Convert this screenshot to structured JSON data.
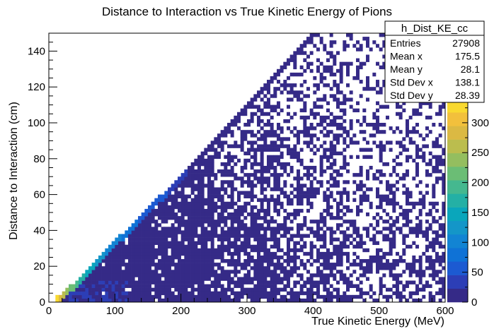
{
  "chart_data": {
    "type": "heatmap",
    "title": "Distance to Interaction vs True Kinetic Energy of Pions",
    "xlabel": "True Kinetic Energy (MeV)",
    "ylabel": "Distance to Interaction (cm)",
    "xlim": [
      0,
      600
    ],
    "ylim": [
      0,
      150
    ],
    "x_ticks": [
      0,
      100,
      200,
      300,
      400,
      500,
      600
    ],
    "y_ticks": [
      0,
      20,
      40,
      60,
      80,
      100,
      120,
      140
    ],
    "z_range": [
      0,
      340
    ],
    "z_ticks": [
      0,
      50,
      100,
      150,
      200,
      250,
      300
    ],
    "palette": [
      "#352a87",
      "#2c3eb6",
      "#1c5ad2",
      "#0f72d6",
      "#1284d3",
      "#1496c8",
      "#0aa6bb",
      "#24b0a5",
      "#45b88f",
      "#6bbd75",
      "#94be5f",
      "#bbbd4e",
      "#dbb943",
      "#f2c03c",
      "#f9d930"
    ],
    "binning": {
      "x_bin_width": 5,
      "y_bin_width": 2
    },
    "dense_band": {
      "description": "ridge where distance ≈ kinetic energy / 2.6 (cm per MeV)",
      "ridge_points": [
        [
          10,
          1
        ],
        [
          20,
          4
        ],
        [
          40,
          10
        ],
        [
          60,
          17
        ],
        [
          80,
          25
        ],
        [
          100,
          33
        ],
        [
          120,
          40
        ],
        [
          140,
          47
        ],
        [
          160,
          55
        ],
        [
          180,
          62
        ],
        [
          200,
          70
        ],
        [
          220,
          78
        ],
        [
          240,
          86
        ],
        [
          260,
          94
        ],
        [
          280,
          102
        ],
        [
          300,
          110
        ],
        [
          320,
          118
        ],
        [
          340,
          126
        ],
        [
          360,
          134
        ],
        [
          380,
          142
        ],
        [
          400,
          150
        ]
      ],
      "ridge_counts": [
        340,
        260,
        200,
        150,
        120,
        100,
        80,
        65,
        55,
        45,
        40,
        35,
        30,
        25,
        22,
        18,
        14,
        10,
        8,
        6,
        4
      ]
    },
    "stats_box": {
      "name": "h_Dist_KE_cc",
      "rows": [
        {
          "label": "Entries",
          "value": "27908"
        },
        {
          "label": "Mean x",
          "value": "175.5"
        },
        {
          "label": "Mean y",
          "value": "28.1"
        },
        {
          "label": "Std Dev x",
          "value": "138.1"
        },
        {
          "label": "Std Dev y",
          "value": "28.39"
        }
      ]
    },
    "legend": "none",
    "grid": false
  }
}
